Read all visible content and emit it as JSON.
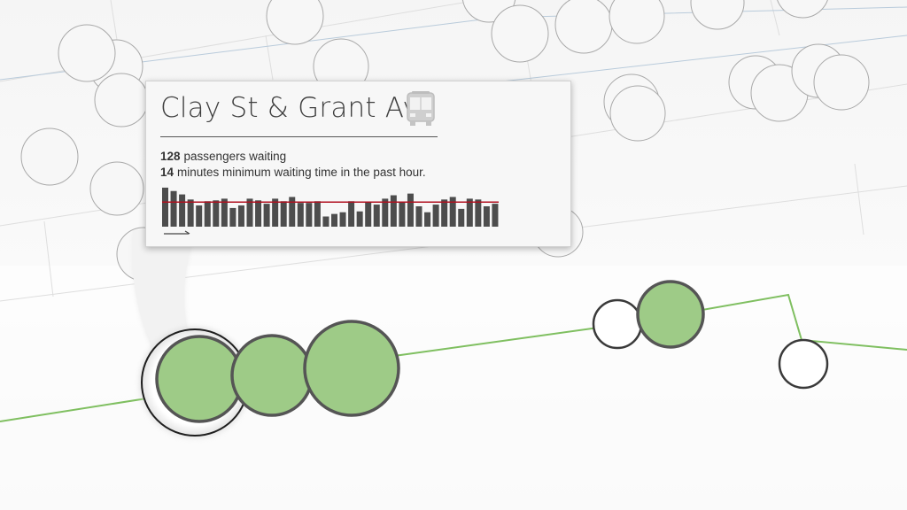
{
  "stop": {
    "name": "Clay St & Grant Ave",
    "icon": "bus-icon"
  },
  "stats": {
    "passengers_count": "128",
    "passengers_text": "passengers waiting",
    "wait_minutes": "14",
    "wait_text": "minutes minimum waiting time in the past  hour."
  },
  "histogram": {
    "values": [
      46,
      42,
      38,
      32,
      25,
      30,
      31,
      33,
      22,
      25,
      33,
      31,
      27,
      33,
      30,
      35,
      28,
      28,
      30,
      12,
      15,
      17,
      30,
      18,
      29,
      26,
      33,
      37,
      29,
      39,
      24,
      17,
      26,
      32,
      35,
      21,
      33,
      32,
      24,
      27
    ],
    "reference": 29,
    "max": 48,
    "bar_color": "#4d4d4d",
    "reference_color": "#b01020",
    "arrow_icon": "arrow-right-icon"
  },
  "colors": {
    "route": "#7fbf60",
    "stop_fill": "#9ecb87",
    "stop_stroke": "#555555",
    "background_route": "#a9bfd3"
  }
}
